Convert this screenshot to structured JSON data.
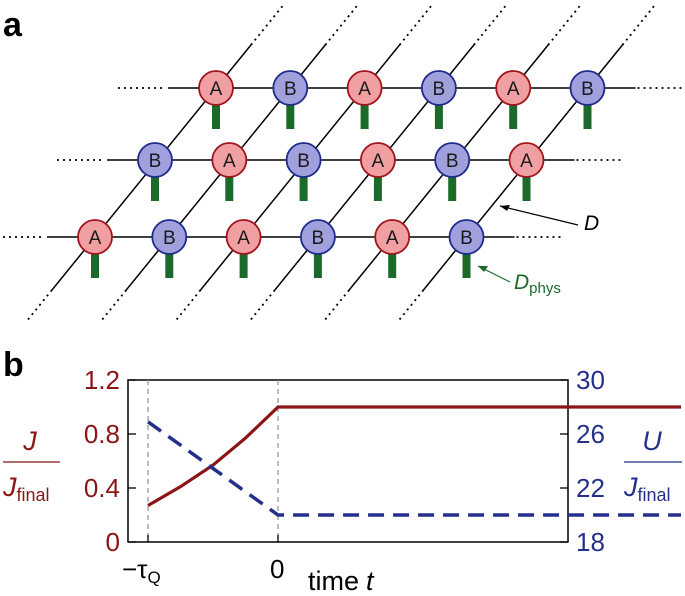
{
  "panel_a": {
    "label": "a",
    "rows": [
      [
        "A",
        "B",
        "A",
        "B",
        "A",
        "B"
      ],
      [
        "B",
        "A",
        "B",
        "A",
        "B",
        "A"
      ],
      [
        "A",
        "B",
        "A",
        "B",
        "A",
        "B"
      ]
    ],
    "bond_label_main": "D",
    "phys_label_main": "D",
    "phys_label_sub": "phys",
    "colors": {
      "A_fill": "#f0a0a2",
      "A_stroke": "#a0141c",
      "B_fill": "#9fa0dc",
      "B_stroke": "#1e2a8c",
      "leg": "#1b6a2a",
      "phys_text": "#1b6a2a",
      "lattice": "#000000"
    }
  },
  "panel_b": {
    "label": "b",
    "left_axis": {
      "var": "J",
      "den_main": "J",
      "den_sub": "final",
      "color": "#8b1515",
      "ticks": [
        "0",
        "0.4",
        "0.8",
        "1.2"
      ]
    },
    "right_axis": {
      "var": "U",
      "den_main": "J",
      "den_sub": "final",
      "color": "#25308c",
      "ticks": [
        "18",
        "22",
        "26",
        "30"
      ]
    },
    "x_ticks": [
      "−τ",
      "0"
    ],
    "x_tick_sub": "Q",
    "x_label": "time",
    "x_label_var": "t"
  },
  "chart_data": {
    "type": "line",
    "xlabel": "time t",
    "x_ticks": [
      "−τQ",
      "0"
    ],
    "x_range_relative": [
      -1,
      3.1
    ],
    "series": [
      {
        "axis": "left",
        "style": "solid",
        "color": "#8b1515",
        "x": [
          -1,
          -0.75,
          -0.5,
          -0.25,
          0,
          3.1
        ],
        "y": [
          0.27,
          0.41,
          0.57,
          0.77,
          1.0,
          1.0
        ]
      },
      {
        "axis": "right",
        "style": "dashed",
        "color": "#25308c",
        "x": [
          -1,
          0,
          3.1
        ],
        "y": [
          26.9,
          20.0,
          20.0
        ]
      }
    ],
    "ylim_left": [
      0,
      1.2
    ],
    "ylim_right": [
      18,
      30
    ]
  }
}
